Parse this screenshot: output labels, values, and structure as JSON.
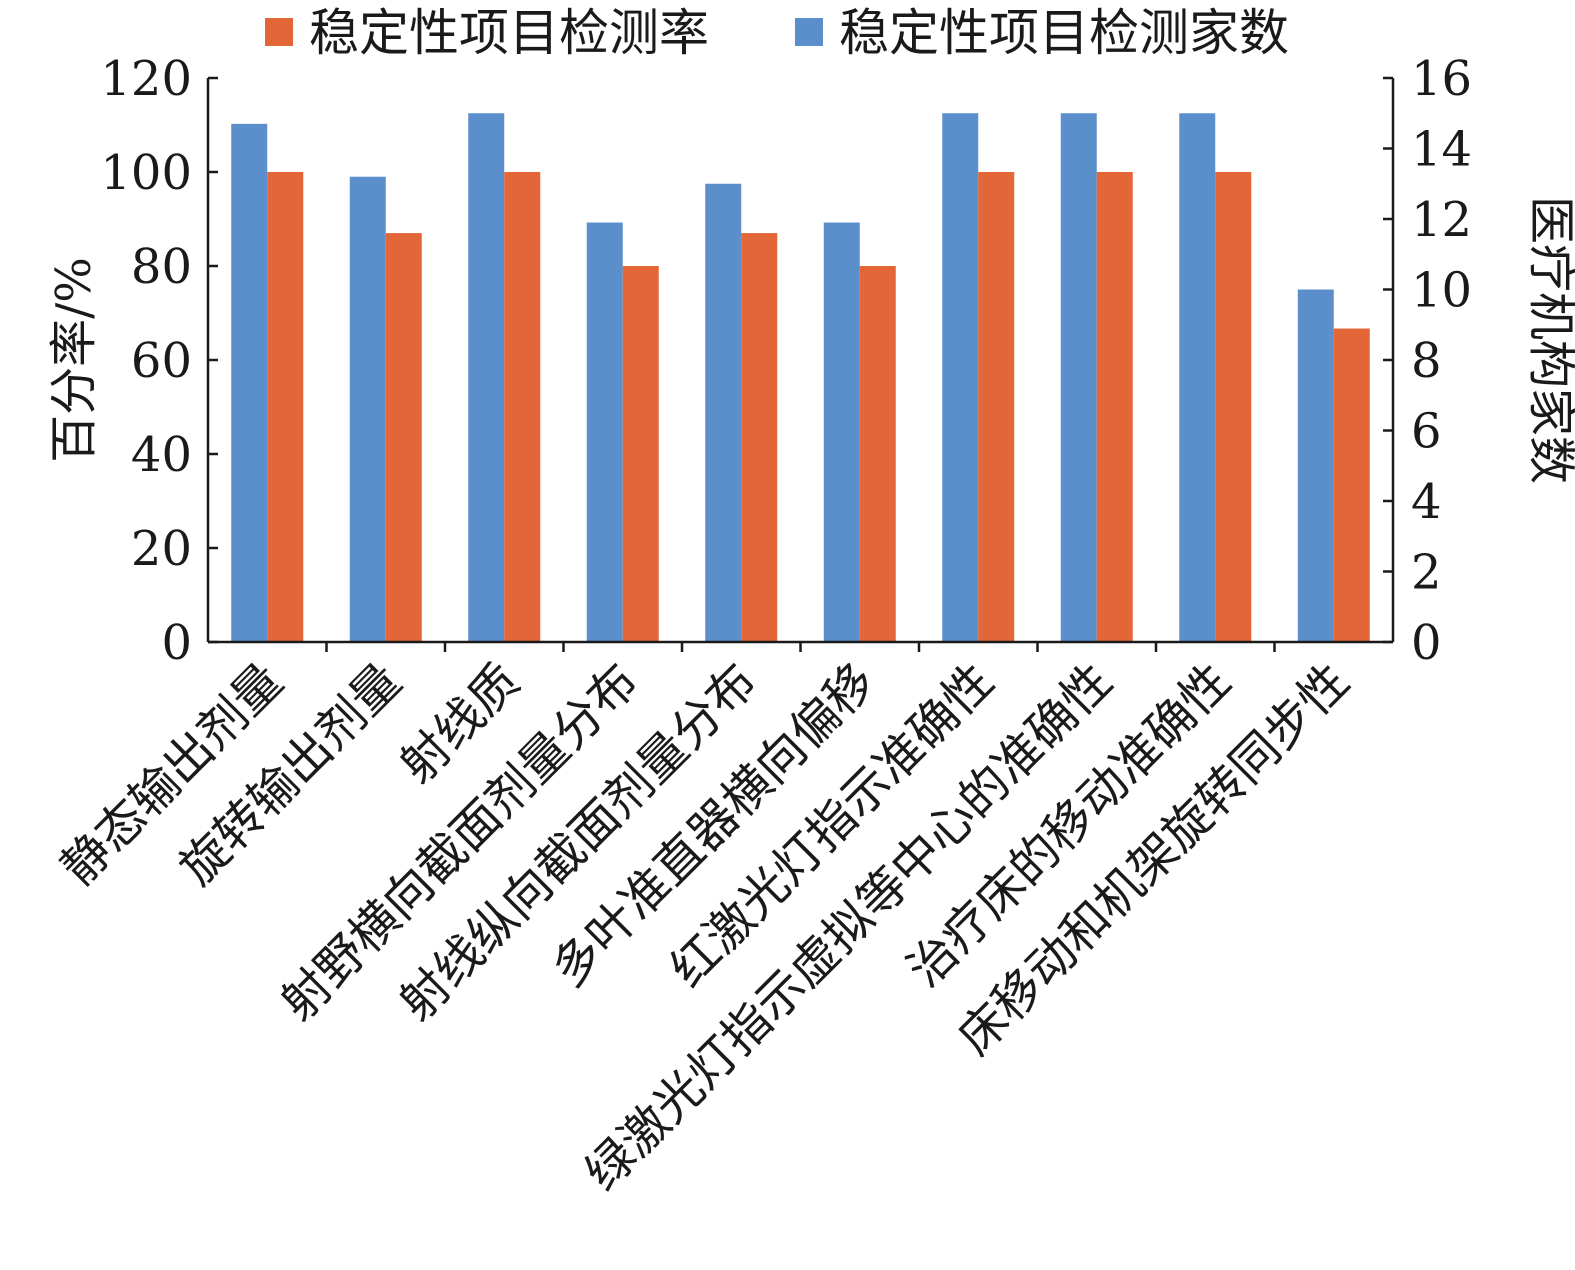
{
  "chart_data": {
    "type": "bar",
    "categories": [
      "静态输出剂量",
      "旋转输出剂量",
      "射线质",
      "射野横向截面剂量分布",
      "射线纵向截面剂量分布",
      "多叶准直器横向偏移",
      "红激光灯指示准确性",
      "绿激光灯指示虚拟等中心的准确性",
      "治疗床的移动准确性",
      "床移动和机架旋转同步性"
    ],
    "series": [
      {
        "name": "稳定性项目检测家数",
        "axis": "right",
        "color": "#5b8fcb",
        "values": [
          14.7,
          13.2,
          15,
          11.9,
          13,
          11.9,
          15,
          15,
          15,
          10
        ]
      },
      {
        "name": "稳定性项目检测率",
        "axis": "left",
        "color": "#e26637",
        "values": [
          100,
          87,
          100,
          80,
          87,
          80,
          100,
          100,
          100,
          66.7
        ]
      }
    ],
    "ylabel": "百分率/%",
    "y2label": "医疗机构家数",
    "ylim": [
      0,
      120
    ],
    "y2lim": [
      0,
      16
    ],
    "yticks": [
      "0",
      "20",
      "40",
      "60",
      "80",
      "100",
      "120"
    ],
    "y2ticks": [
      "0",
      "2",
      "4",
      "6",
      "8",
      "10",
      "12",
      "14",
      "16"
    ],
    "legend_order": [
      "稳定性项目检测率",
      "稳定性项目检测家数"
    ],
    "legend_position": "top",
    "grid": false
  }
}
